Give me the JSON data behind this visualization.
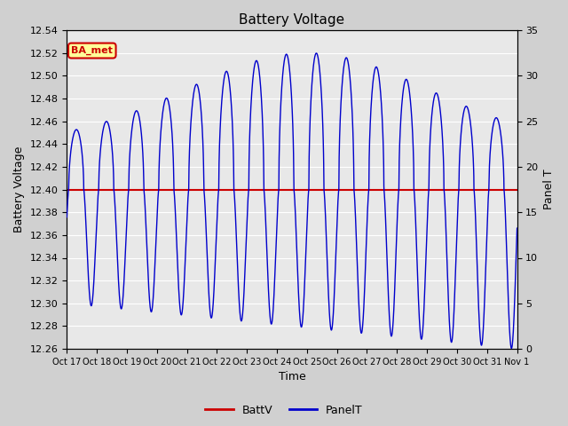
{
  "title": "Battery Voltage",
  "xlabel": "Time",
  "ylabel_left": "Battery Voltage",
  "ylabel_right": "Panel T",
  "batt_v": 12.4,
  "ylim_left": [
    12.26,
    12.54
  ],
  "ylim_right": [
    0,
    35
  ],
  "yticks_left": [
    12.26,
    12.28,
    12.3,
    12.32,
    12.34,
    12.36,
    12.38,
    12.4,
    12.42,
    12.44,
    12.46,
    12.48,
    12.5,
    12.52,
    12.54
  ],
  "yticks_right": [
    0,
    5,
    10,
    15,
    20,
    25,
    30,
    35
  ],
  "xtick_labels": [
    "Oct 17",
    "Oct 18",
    "Oct 19",
    "Oct 20",
    "Oct 21",
    "Oct 22",
    "Oct 23",
    "Oct 24",
    "Oct 25",
    "Oct 26",
    "Oct 27",
    "Oct 28",
    "Oct 29",
    "Oct 30",
    "Oct 31",
    "Nov 1"
  ],
  "fig_bg_color": "#d0d0d0",
  "plot_bg_color": "#e8e8e8",
  "grid_color": "#ffffff",
  "line_blue": "#0000cc",
  "line_red": "#cc0000",
  "legend_batt_label": "BattV",
  "legend_panel_label": "PanelT",
  "annotation_text": "BA_met",
  "annotation_box_color": "#ffff99",
  "annotation_border_color": "#cc0000",
  "annotation_text_color": "#cc0000",
  "figsize": [
    6.4,
    4.8
  ],
  "dpi": 100
}
